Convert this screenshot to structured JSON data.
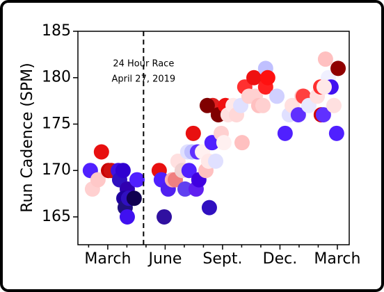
{
  "chart_data": {
    "type": "scatter",
    "y_label": "Run Cadence (SPM)",
    "annotation": {
      "x": 4.87,
      "lines": [
        "24 Hour Race",
        "April 27, 2019"
      ]
    },
    "xlim": [
      1.44,
      15.62
    ],
    "ylim": [
      162,
      185
    ],
    "xticks": [
      {
        "value": 2,
        "label": null
      },
      {
        "value": 3,
        "label": "March"
      },
      {
        "value": 4,
        "label": null
      },
      {
        "value": 5,
        "label": null
      },
      {
        "value": 6,
        "label": "June"
      },
      {
        "value": 7,
        "label": null
      },
      {
        "value": 8,
        "label": null
      },
      {
        "value": 9,
        "label": "Sept."
      },
      {
        "value": 10,
        "label": null
      },
      {
        "value": 11,
        "label": null
      },
      {
        "value": 12,
        "label": "Dec."
      },
      {
        "value": 13,
        "label": null
      },
      {
        "value": 14,
        "label": null
      },
      {
        "value": 15,
        "label": "March"
      }
    ],
    "yticks": [
      165,
      170,
      175,
      180,
      185
    ],
    "series": [
      {
        "x": [
          2.09,
          2.2,
          2.49,
          2.67,
          3.04,
          3.18,
          3.55,
          3.62,
          3.8,
          4.02,
          3.84,
          3.91,
          4.09,
          4.02,
          4.38,
          4.53,
          5.69,
          5.8,
          5.95,
          6.16,
          6.38,
          6.53,
          6.67,
          6.89,
          7.04,
          7.18,
          7.25,
          7.4,
          7.47,
          7.62,
          7.69,
          7.76,
          7.95,
          8.13,
          8.27,
          8.31,
          8.45,
          8.49,
          8.64,
          8.2,
          8.78,
          8.93,
          9.07,
          9.15,
          9.29,
          9.55,
          9.73,
          9.95,
          10.02,
          10.16,
          10.38,
          10.64,
          10.71,
          10.89,
          11.11,
          11.25,
          11.25,
          11.36,
          11.84,
          12.27,
          12.49,
          12.64,
          12.96,
          13.15,
          13.22,
          13.51,
          13.95,
          14.13,
          14.16,
          14.27,
          14.38,
          14.53,
          14.67,
          14.82,
          14.96,
          15.04,
          14.31
        ],
        "values": [
          170,
          168,
          169,
          172,
          170,
          170,
          170,
          169,
          170,
          168,
          167,
          166,
          167,
          165,
          167,
          169,
          170,
          169,
          165,
          168,
          169,
          169,
          171,
          170,
          168,
          172,
          170,
          172,
          174,
          168,
          172,
          169,
          172,
          170,
          171,
          166,
          173,
          177,
          171,
          177,
          176,
          174,
          173,
          177,
          176,
          177,
          176,
          177,
          173,
          179,
          178,
          180,
          178,
          177,
          177,
          179,
          181,
          180,
          178,
          174,
          176,
          177,
          176,
          178,
          178,
          177,
          178,
          179,
          176,
          176,
          182,
          180,
          179,
          177,
          174,
          181,
          179
        ],
        "colors": [
          "#5020ff",
          "#ffd0d0",
          "#ffc8c8",
          "#e81010",
          "#c80000",
          "#d01010",
          "#4010e0",
          "#3010c0",
          "#3000d0",
          "#3000b0",
          "#2000a0",
          "#201080",
          "#3010c0",
          "#4010f0",
          "#100050",
          "#5020ff",
          "#e81010",
          "#5020ff",
          "#3010a0",
          "#5020f0",
          "#ffb0b0",
          "#f08080",
          "#ffe0e0",
          "#f0d0d0",
          "#6040f0",
          "#e0e0ff",
          "#5020ff",
          "#c0c0ff",
          "#e81010",
          "#6020f0",
          "#6030ff",
          "#4000e0",
          "#fff0f0",
          "#ffc0c0",
          "#ffe8e8",
          "#3010c0",
          "#5020ff",
          "#e02020",
          "#e0e0ff",
          "#800000",
          "#800000",
          "#ffd0d0",
          "#fff0f0",
          "#f01010",
          "#ffe0e0",
          "#ffe8e8",
          "#ffd8d8",
          "#e0e0ff",
          "#ffc0c0",
          "#ff3030",
          "#ffd0d0",
          "#ee1010",
          "#ffd0d0",
          "#ffc0c0",
          "#ffd0d0",
          "#ff2020",
          "#c0c0ff",
          "#ff1010",
          "#d0d0ff",
          "#5020ff",
          "#e0e0ff",
          "#ffe0e0",
          "#6030ff",
          "#ffd0d0",
          "#ff4040",
          "#e8e8ff",
          "#ffe0e0",
          "#ff3030",
          "#d00000",
          "#6030ff",
          "#ffc0c0",
          "#f0f0ff",
          "#4010f0",
          "#ffe0e0",
          "#5020ff",
          "#900000",
          "#ffe8e8"
        ]
      }
    ]
  }
}
